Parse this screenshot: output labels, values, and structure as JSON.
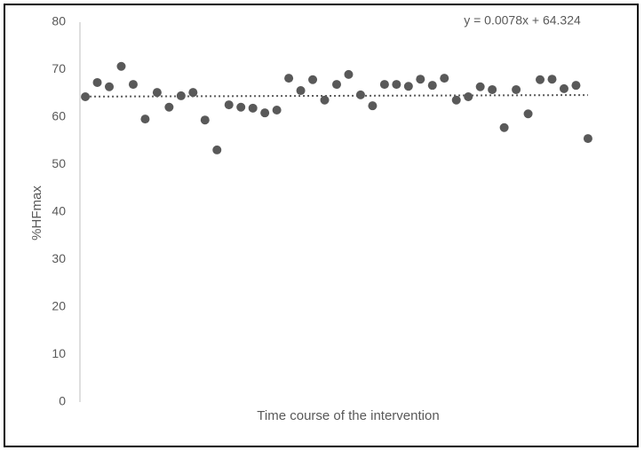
{
  "chart_data": {
    "type": "scatter",
    "x_label": "Time course of the intervention",
    "y_label": "%HFmax",
    "x": [
      1,
      2,
      3,
      4,
      5,
      6,
      7,
      8,
      9,
      10,
      11,
      12,
      13,
      14,
      15,
      16,
      17,
      18,
      19,
      20,
      21,
      22,
      23,
      24,
      25,
      26,
      27,
      28,
      29,
      30,
      31,
      32,
      33,
      34,
      35,
      36,
      37,
      38,
      39,
      40,
      41,
      42,
      43
    ],
    "values": [
      64.3,
      67.3,
      66.4,
      70.7,
      66.9,
      59.6,
      65.2,
      62.1,
      64.5,
      65.2,
      59.4,
      53.1,
      62.6,
      62.1,
      61.9,
      60.9,
      61.5,
      68.2,
      65.6,
      67.9,
      63.6,
      66.9,
      69.0,
      64.7,
      62.4,
      66.9,
      66.9,
      66.5,
      68.0,
      66.7,
      68.2,
      63.6,
      64.3,
      66.4,
      65.8,
      57.8,
      65.8,
      60.7,
      67.9,
      68.0,
      66.0,
      66.7,
      55.5
    ],
    "color": "#595959",
    "xlim": [
      0.55,
      43.6
    ],
    "ylim": [
      0,
      80
    ],
    "yticks": [
      0,
      10,
      20,
      30,
      40,
      50,
      60,
      70,
      80
    ],
    "grid": false,
    "trendline": {
      "slope": 0.0078,
      "intercept": 64.324,
      "label": "y = 0.0078x + 64.324"
    }
  }
}
